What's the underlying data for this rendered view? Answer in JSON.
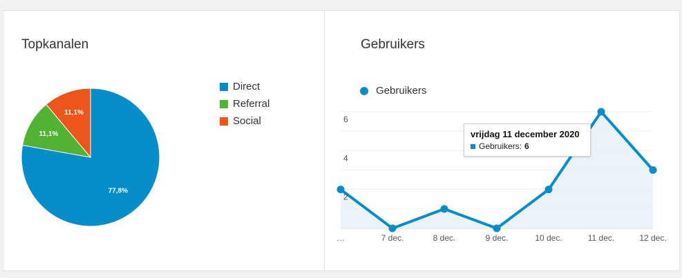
{
  "left_panel": {
    "title": "Topkanalen"
  },
  "right_panel": {
    "title": "Gebruikers"
  },
  "tooltip": {
    "date": "vrijdag 11 december 2020",
    "series": "Gebruikers:",
    "value": "6"
  },
  "chart_data": [
    {
      "type": "pie",
      "title": "Topkanalen",
      "slices": [
        {
          "label": "Direct",
          "value": 77.8,
          "display": "77,8%",
          "color": "#058dc7"
        },
        {
          "label": "Referral",
          "value": 11.1,
          "display": "11,1%",
          "color": "#50b432"
        },
        {
          "label": "Social",
          "value": 11.1,
          "display": "11,1%",
          "color": "#ed561b"
        }
      ],
      "legend": "right"
    },
    {
      "type": "area",
      "title": "Gebruikers",
      "x": [
        "…",
        "7 dec.",
        "8 dec.",
        "9 dec.",
        "10 dec.",
        "11 dec.",
        "12 dec."
      ],
      "series": [
        {
          "name": "Gebruikers",
          "values": [
            2,
            0,
            1,
            0,
            2,
            6,
            3
          ],
          "color": "#058dc7"
        }
      ],
      "y_ticks": [
        "2",
        "4",
        "6"
      ],
      "ylim": [
        0,
        6
      ],
      "grid": true,
      "legend": "top-left"
    }
  ]
}
